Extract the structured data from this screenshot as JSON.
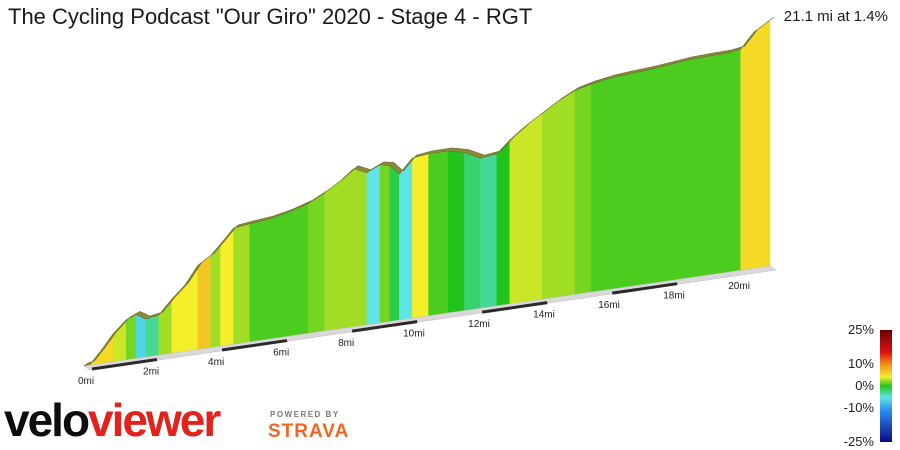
{
  "header": {
    "title": "The Cycling Podcast \"Our Giro\" 2020 - Stage 4 - RGT",
    "summary": "21.1 mi at 1.4%"
  },
  "branding": {
    "logo_part1": "velo",
    "logo_part2": "viewer",
    "powered_by": "POWERED BY",
    "strava": "STRAVA",
    "colors": {
      "velo": "#0d0d0d",
      "viewer": "#e3221b",
      "strava": "#f26622"
    }
  },
  "gradient_scale": {
    "labels": [
      "25%",
      "10%",
      "0%",
      "-10%",
      "-25%"
    ],
    "stops": [
      {
        "grade": 25,
        "color": "#6b0000"
      },
      {
        "grade": 15,
        "color": "#e01010"
      },
      {
        "grade": 10,
        "color": "#f08a1a"
      },
      {
        "grade": 5,
        "color": "#f5ee2a"
      },
      {
        "grade": 0,
        "color": "#22c41c"
      },
      {
        "grade": -5,
        "color": "#5ee6e6"
      },
      {
        "grade": -10,
        "color": "#2a8cf0"
      },
      {
        "grade": -25,
        "color": "#0a0a80"
      }
    ]
  },
  "chart_data": {
    "type": "area",
    "title": "The Cycling Podcast \"Our Giro\" 2020 - Stage 4 - RGT",
    "xlabel": "",
    "ylabel": "",
    "x_unit": "mi",
    "x_range": [
      0,
      21.1
    ],
    "x_ticks": [
      0,
      2,
      4,
      6,
      8,
      10,
      12,
      14,
      16,
      18,
      20
    ],
    "x_tick_labels": [
      "0mi",
      "2mi",
      "4mi",
      "6mi",
      "8mi",
      "10mi",
      "12mi",
      "14mi",
      "16mi",
      "18mi",
      "20mi"
    ],
    "elevation_relative": {
      "x": [
        0,
        0.2,
        0.5,
        0.9,
        1.3,
        1.6,
        1.9,
        2.3,
        2.7,
        3.1,
        3.5,
        3.9,
        4.2,
        4.6,
        5.1,
        5.7,
        6.3,
        6.9,
        7.4,
        7.9,
        8.3,
        8.7,
        9.1,
        9.4,
        9.7,
        10.1,
        10.6,
        11.2,
        11.7,
        12.2,
        12.7,
        13.1,
        13.6,
        14.1,
        14.6,
        15.1,
        15.6,
        16.2,
        16.8,
        17.4,
        18.0,
        18.6,
        19.2,
        19.8,
        20.2,
        20.6,
        21.1
      ],
      "y": [
        0,
        3,
        30,
        70,
        100,
        110,
        95,
        100,
        135,
        165,
        210,
        230,
        255,
        290,
        295,
        300,
        310,
        325,
        345,
        370,
        395,
        380,
        395,
        390,
        365,
        400,
        405,
        405,
        395,
        375,
        380,
        410,
        440,
        465,
        490,
        510,
        520,
        528,
        532,
        535,
        540,
        545,
        547,
        548,
        553,
        590,
        615
      ]
    },
    "segment_grades_pct": [
      2,
      6,
      6,
      4,
      2,
      -6,
      -3,
      3,
      5,
      5,
      7,
      3,
      5,
      3,
      1,
      1,
      1,
      2,
      3,
      3,
      3,
      -5,
      2,
      -1,
      -5,
      5,
      1,
      0,
      -2,
      -3,
      0,
      4,
      4,
      3,
      3,
      2,
      1,
      1,
      1,
      1,
      1,
      1,
      1,
      1,
      6,
      6
    ]
  }
}
